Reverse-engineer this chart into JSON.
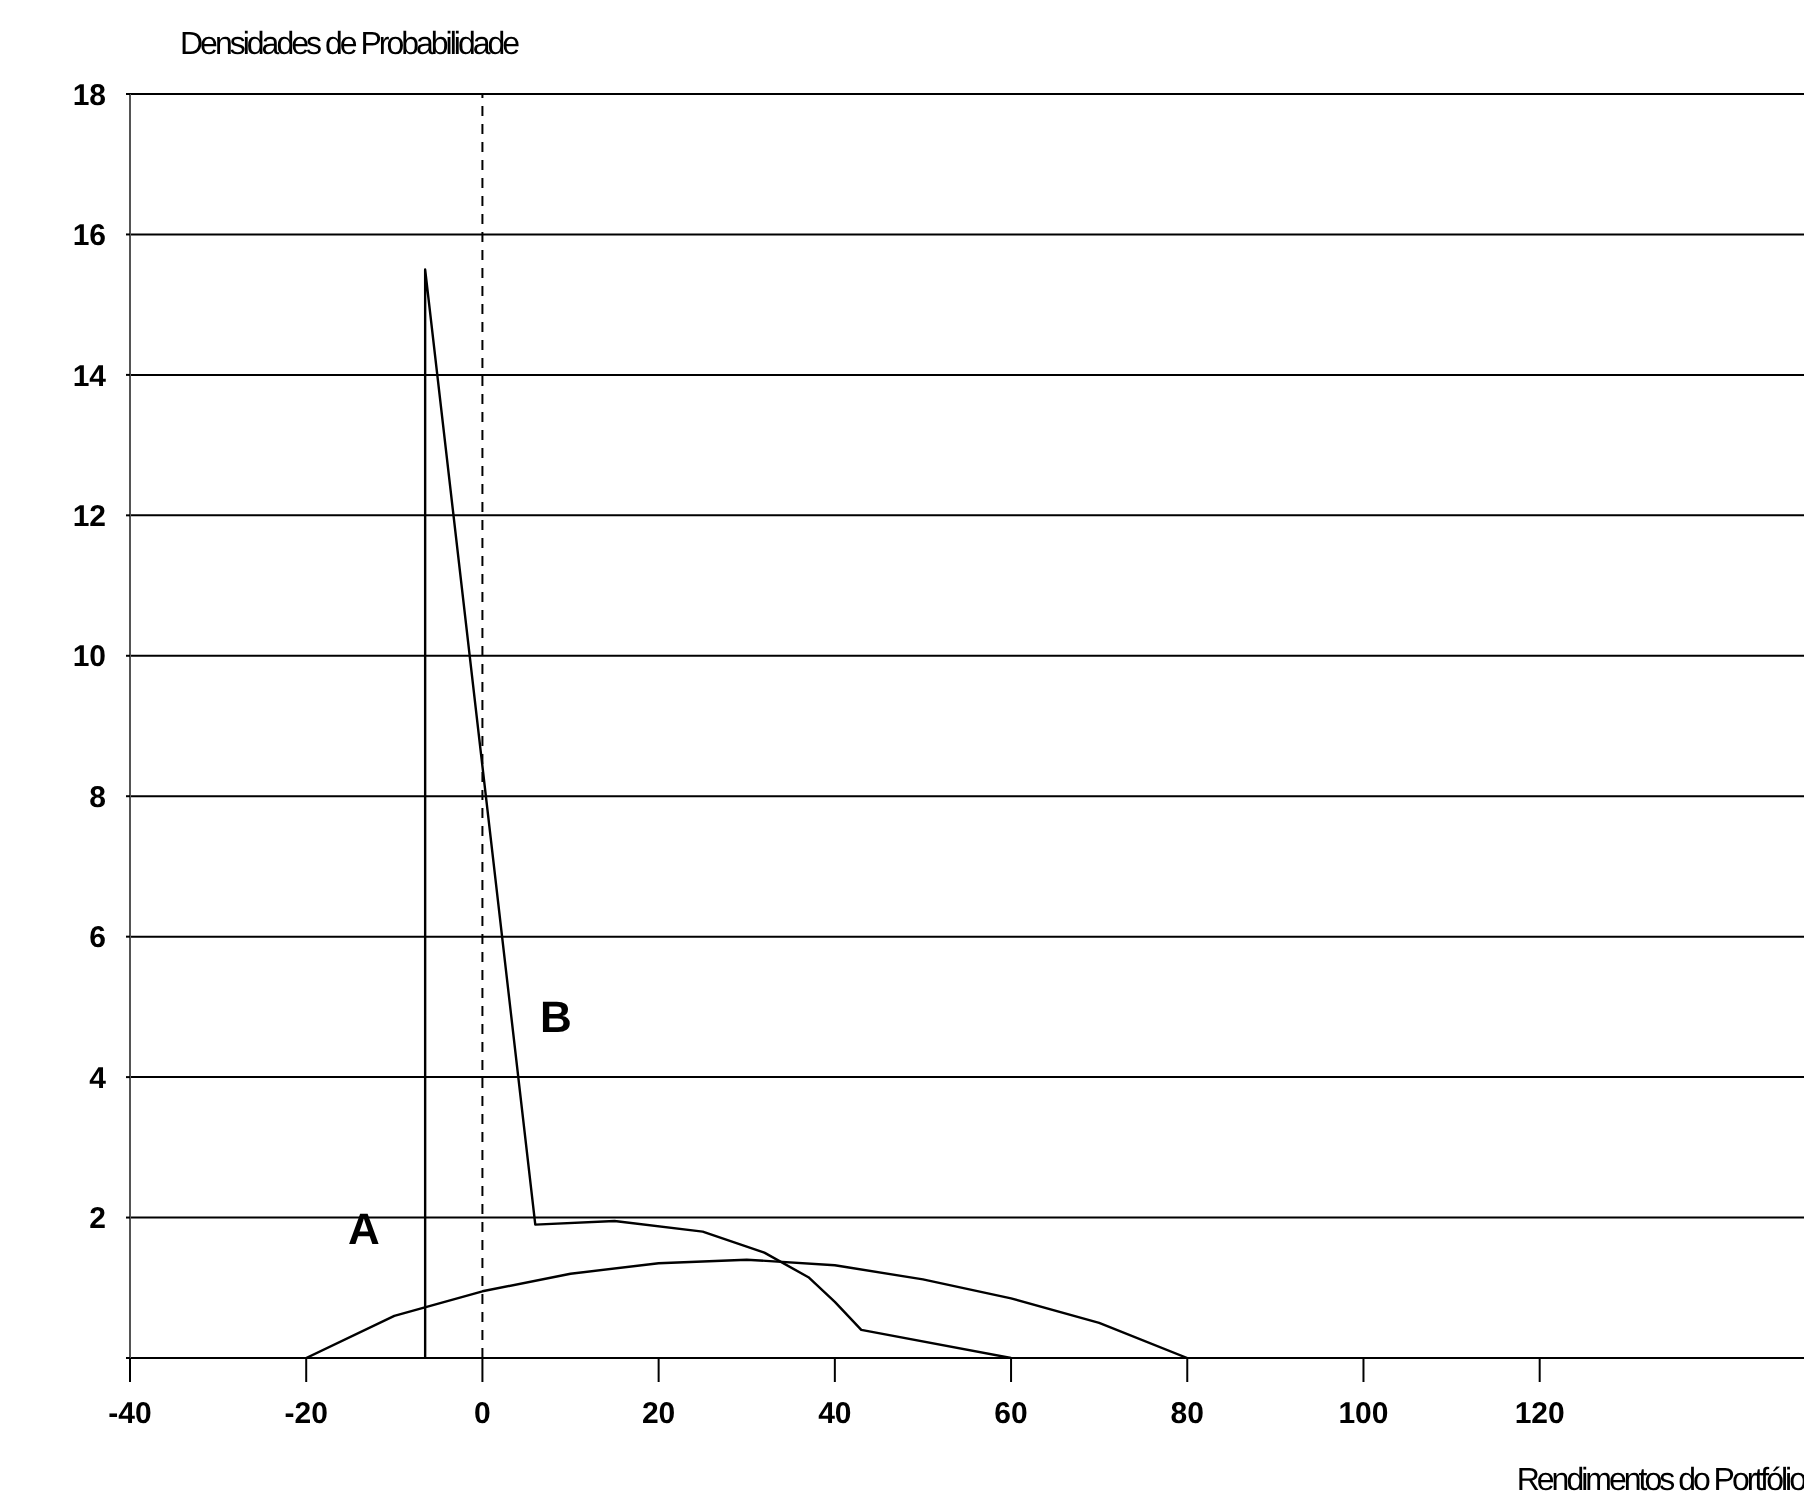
{
  "chart_data": {
    "type": "line",
    "title": "Densidades de Probabilidade",
    "xlabel": "Rendimentos do Portfólio",
    "xlim": [
      -40,
      150
    ],
    "xticks": [
      -40,
      -20,
      0,
      20,
      40,
      60,
      80,
      100,
      120
    ],
    "ylim": [
      0,
      18
    ],
    "yticks": [
      {
        "value": 0,
        "label": null
      },
      2,
      4,
      6,
      8,
      10,
      12,
      14,
      16,
      18
    ],
    "grid": "y",
    "marker": "none",
    "line_style": "solid",
    "series": [
      {
        "color": "#000000",
        "x": [
          -20,
          -10,
          0,
          10,
          20,
          30,
          40,
          50,
          60,
          70,
          80
        ],
        "values": [
          0,
          0.6,
          0.95,
          1.2,
          1.35,
          1.4,
          1.32,
          1.12,
          0.85,
          0.5,
          0
        ]
      },
      {
        "color": "#000000",
        "x": [
          -6.5,
          -6.5,
          6,
          15,
          25,
          32,
          37,
          40,
          43,
          60
        ],
        "values": [
          0,
          15.5,
          1.9,
          1.95,
          1.8,
          1.5,
          1.15,
          0.8,
          0.4,
          0
        ]
      }
    ],
    "ref_lines": [
      {
        "axis": "x",
        "value": 0,
        "line_style": "dashed",
        "color": "#000000"
      }
    ],
    "annotations": [
      "A",
      "B"
    ]
  }
}
